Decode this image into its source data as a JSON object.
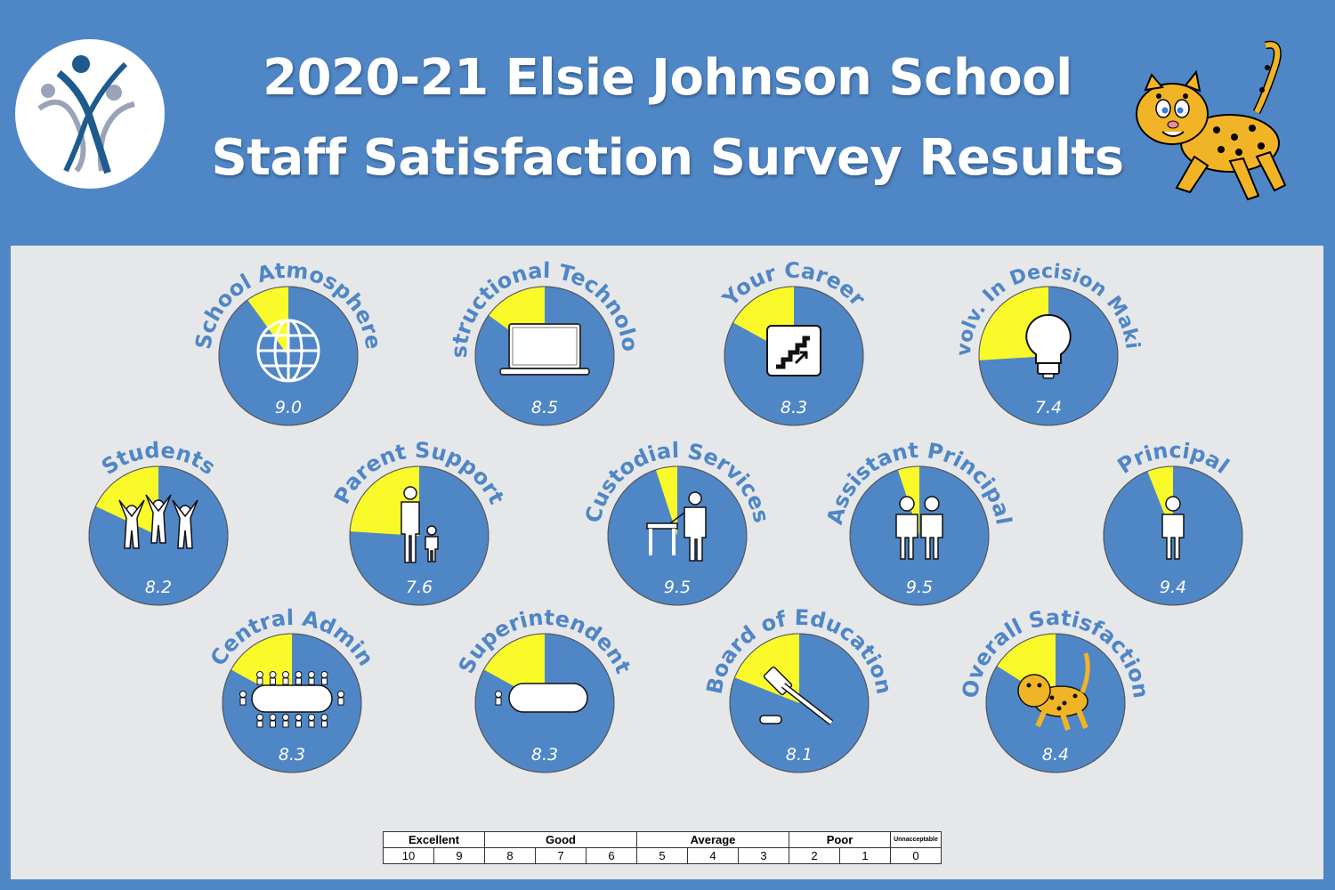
{
  "header": {
    "title_line1": "2020-21 Elsie Johnson School",
    "title_line2": "Staff Satisfaction Survey Results"
  },
  "colors": {
    "background": "#4f86c6",
    "panel": "#e6e7e9",
    "pie_fill": "#4f86c6",
    "pie_remainder": "#fafa2a",
    "text_white": "#ffffff"
  },
  "chart_data": {
    "type": "pie",
    "scale_max": 10,
    "items": [
      {
        "label": "School Atmosphere",
        "value": 9.0,
        "value_label": "9.0",
        "icon": "globe-icon"
      },
      {
        "label": "Instructional Technology",
        "value": 8.5,
        "value_label": "8.5",
        "icon": "laptop-icon"
      },
      {
        "label": "Your Career",
        "value": 8.3,
        "value_label": "8.3",
        "icon": "stairs-icon"
      },
      {
        "label": "Involv. In Decision Making",
        "value": 7.4,
        "value_label": "7.4",
        "icon": "lightbulb-icon"
      },
      {
        "label": "Students",
        "value": 8.2,
        "value_label": "8.2",
        "icon": "students-icon"
      },
      {
        "label": "Parent Support",
        "value": 7.6,
        "value_label": "7.6",
        "icon": "parent-child-icon"
      },
      {
        "label": "Custodial Services",
        "value": 9.5,
        "value_label": "9.5",
        "icon": "custodian-icon"
      },
      {
        "label": "Assistant Principal",
        "value": 9.5,
        "value_label": "9.5",
        "icon": "two-people-icon"
      },
      {
        "label": "Principal",
        "value": 9.4,
        "value_label": "9.4",
        "icon": "person-icon"
      },
      {
        "label": "Central Admin",
        "value": 8.3,
        "value_label": "8.3",
        "icon": "meeting-table-icon"
      },
      {
        "label": "Superintendent",
        "value": 8.3,
        "value_label": "8.3",
        "icon": "desk-icon"
      },
      {
        "label": "Board of Education",
        "value": 8.1,
        "value_label": "8.1",
        "icon": "gavel-icon"
      },
      {
        "label": "Overall Satisfaction",
        "value": 8.4,
        "value_label": "8.4",
        "icon": "leopard-icon"
      }
    ]
  },
  "rating_scale": {
    "groups": [
      {
        "label": "Excellent",
        "span": 2
      },
      {
        "label": "Good",
        "span": 3
      },
      {
        "label": "Average",
        "span": 3
      },
      {
        "label": "Poor",
        "span": 2
      },
      {
        "label": "Unnacceptable",
        "span": 1
      }
    ],
    "values": [
      "10",
      "9",
      "8",
      "7",
      "6",
      "5",
      "4",
      "3",
      "2",
      "1",
      "0"
    ]
  }
}
